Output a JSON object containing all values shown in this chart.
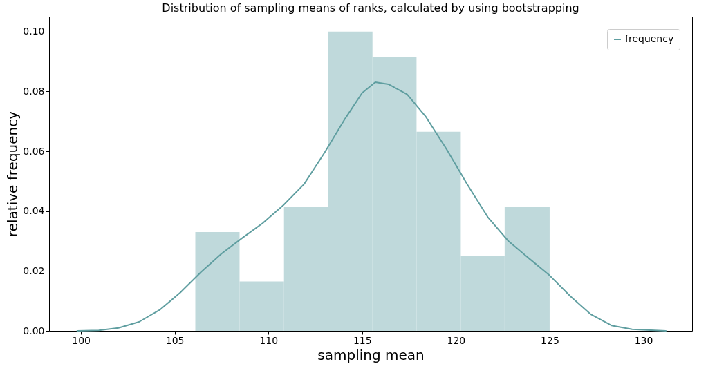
{
  "chart_data": {
    "type": "histogram",
    "title": "Distribution of sampling means of ranks, calculated by using bootstrapping",
    "xlabel": "sampling mean",
    "ylabel": "relative frequency",
    "series": [
      {
        "type": "histogram",
        "color": "#bfd9db",
        "bins": [
          106.1,
          108.46,
          110.83,
          113.2,
          115.55,
          117.9,
          120.26,
          122.6,
          125.0
        ],
        "values": [
          0.033,
          0.0165,
          0.0415,
          0.1,
          0.0915,
          0.0665,
          0.025,
          0.0415
        ]
      },
      {
        "type": "line",
        "name": "frequency",
        "color": "#5f9ea0",
        "x": [
          99.8,
          100.95,
          102.0,
          103.1,
          104.2,
          105.3,
          106.4,
          107.5,
          108.6,
          109.7,
          110.8,
          111.9,
          113.0,
          114.1,
          115.0,
          115.7,
          116.4,
          117.4,
          118.4,
          119.5,
          120.6,
          121.7,
          122.8,
          123.9,
          125.0,
          126.1,
          127.2,
          128.3,
          129.4,
          131.2
        ],
        "values": [
          0.0,
          0.0002,
          0.001,
          0.003,
          0.007,
          0.0128,
          0.0196,
          0.0258,
          0.031,
          0.036,
          0.042,
          0.049,
          0.0596,
          0.071,
          0.0795,
          0.0831,
          0.0824,
          0.079,
          0.0715,
          0.0607,
          0.049,
          0.038,
          0.03,
          0.0242,
          0.0185,
          0.0116,
          0.0055,
          0.0018,
          0.0005,
          0.0
        ]
      }
    ],
    "xlim": [
      98.3,
      132.6
    ],
    "xticks": [
      100,
      105,
      110,
      115,
      120,
      125,
      130
    ],
    "ylim": [
      0,
      0.105
    ],
    "yticks": [
      {
        "value": 0,
        "label": "0.00"
      },
      {
        "value": 0.02,
        "label": "0.02"
      },
      {
        "value": 0.04,
        "label": "0.04"
      },
      {
        "value": 0.06,
        "label": "0.06"
      },
      {
        "value": 0.08,
        "label": "0.08"
      },
      {
        "value": 0.1,
        "label": "0.10"
      }
    ],
    "legend": "top right",
    "grid": false
  }
}
